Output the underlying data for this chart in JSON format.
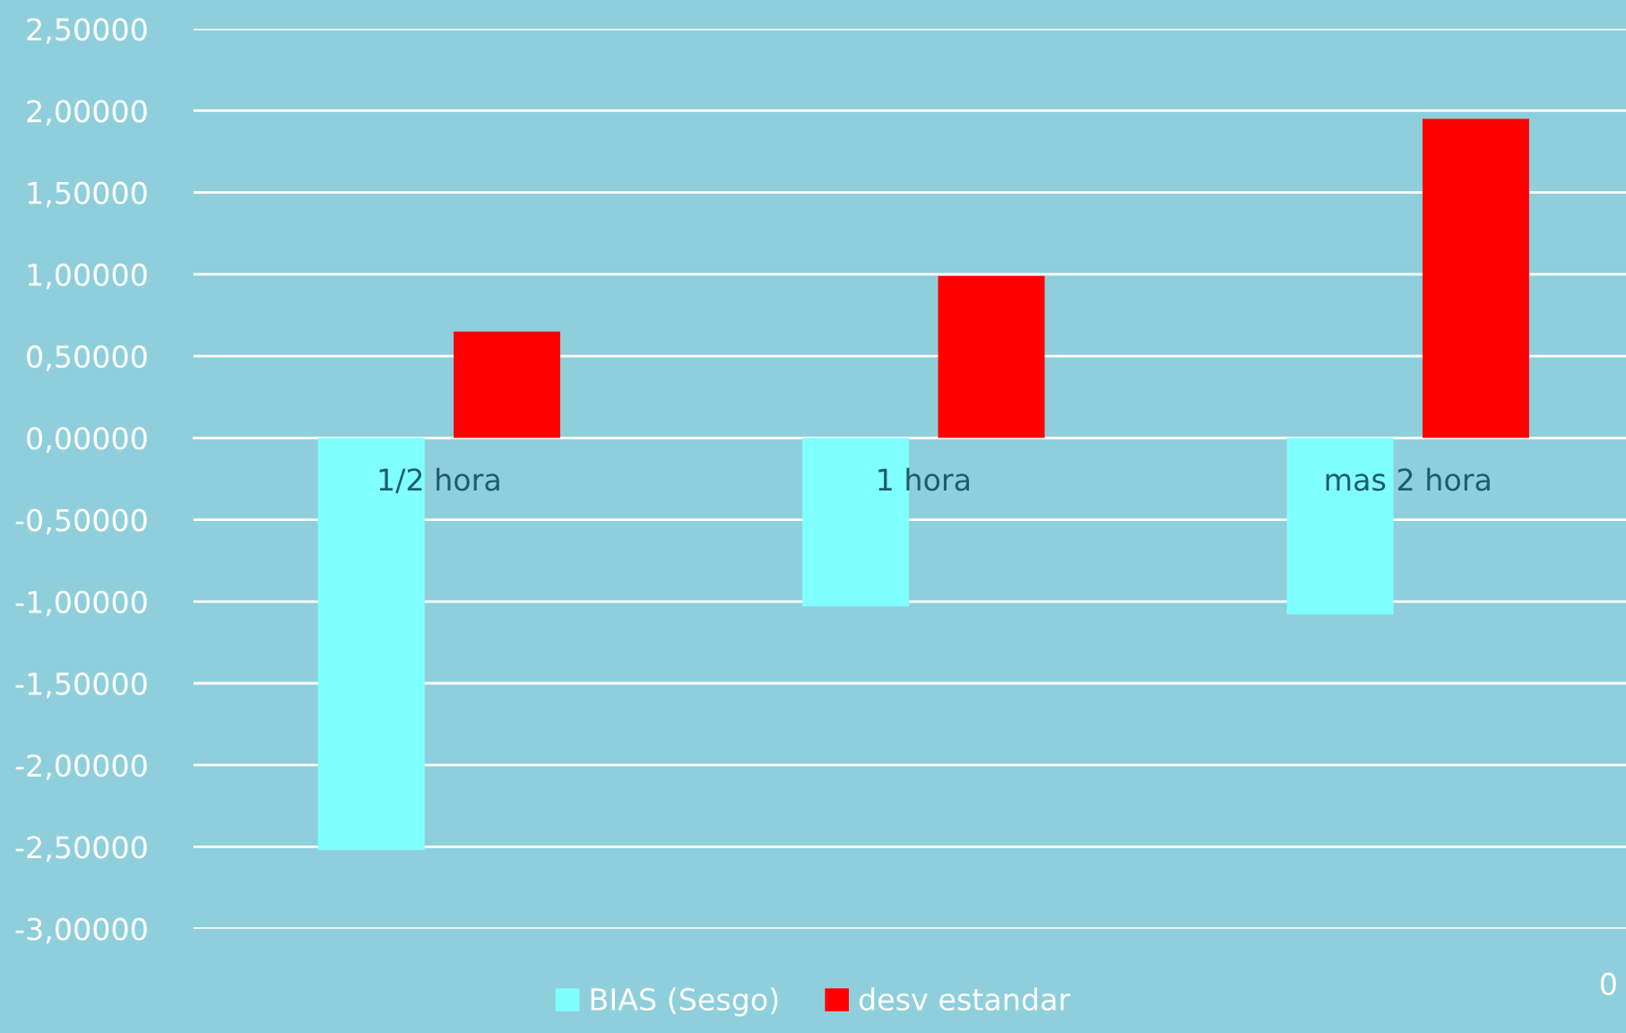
{
  "chart_data": {
    "type": "bar",
    "categories": [
      "1/2 hora",
      "1 hora",
      "mas 2 hora"
    ],
    "series": [
      {
        "name": "BIAS (Sesgo)",
        "color": "#80ffff",
        "values": [
          -2.52,
          -1.03,
          -1.08
        ]
      },
      {
        "name": "desv estandar",
        "color": "#ff0000",
        "values": [
          0.65,
          0.99,
          1.95
        ]
      }
    ],
    "ylim": [
      -3.0,
      2.5
    ],
    "yticks": [
      {
        "value": -3.0,
        "label": "-3,00000"
      },
      {
        "value": -2.5,
        "label": "-2,50000"
      },
      {
        "value": -2.0,
        "label": "-2,00000"
      },
      {
        "value": -1.5,
        "label": "-1,50000"
      },
      {
        "value": -1.0,
        "label": "-1,00000"
      },
      {
        "value": -0.5,
        "label": "-0,50000"
      },
      {
        "value": 0,
        "label": "0,00000"
      },
      {
        "value": 0.5,
        "label": "0,50000"
      },
      {
        "value": 1.0,
        "label": "1,00000"
      },
      {
        "value": 1.5,
        "label": "1,50000"
      },
      {
        "value": 2.0,
        "label": "2,00000"
      },
      {
        "value": 2.5,
        "label": "2,50000"
      }
    ],
    "grid": "y",
    "legend": "bottom",
    "annotations": [
      "0"
    ]
  }
}
